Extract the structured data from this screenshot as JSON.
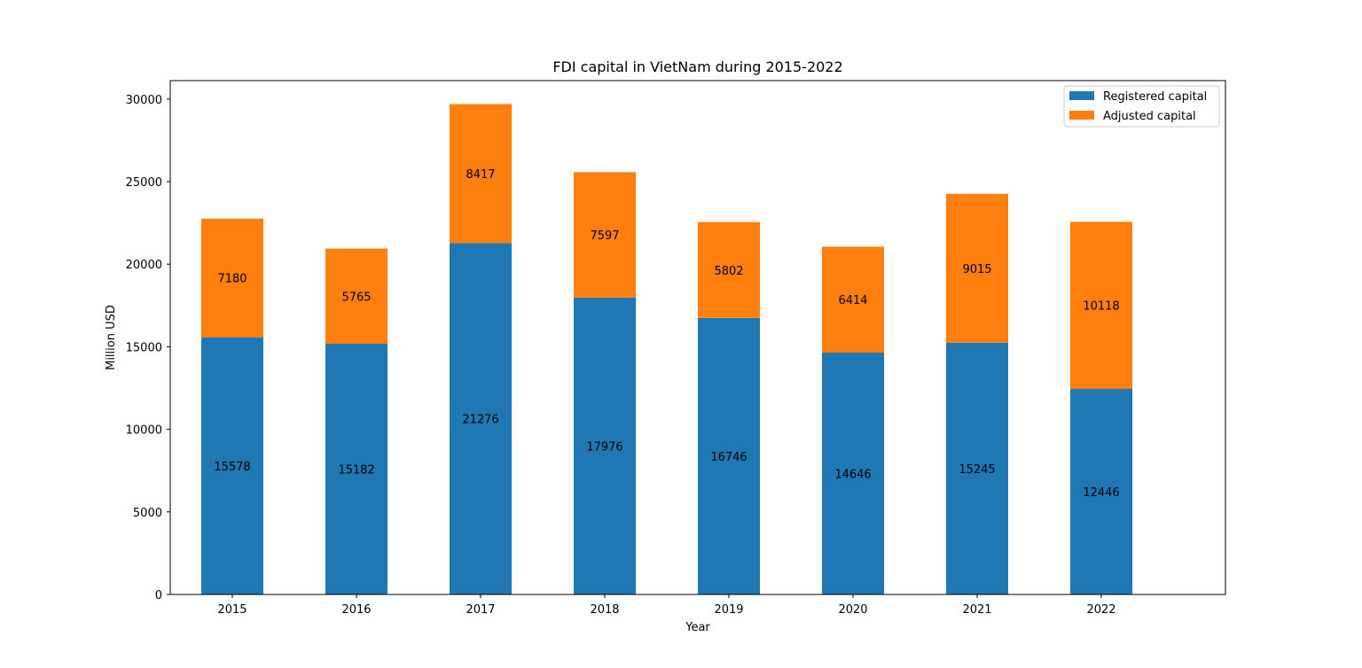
{
  "chart_data": {
    "type": "bar",
    "stacked": true,
    "title": "FDI capital in VietNam during 2015-2022",
    "xlabel": "Year",
    "ylabel": "Million USD",
    "categories": [
      "2015",
      "2016",
      "2017",
      "2018",
      "2019",
      "2020",
      "2021",
      "2022"
    ],
    "series": [
      {
        "name": "Registered capital",
        "color": "#1f77b4",
        "values": [
          15578,
          15182,
          21276,
          17976,
          16746,
          14646,
          15245,
          12446
        ]
      },
      {
        "name": "Adjusted capital",
        "color": "#ff7f0e",
        "values": [
          7180,
          5765,
          8417,
          7597,
          5802,
          6414,
          9015,
          10118
        ]
      }
    ],
    "ylim": [
      0,
      31116
    ],
    "yticks": [
      0,
      5000,
      10000,
      15000,
      20000,
      25000,
      30000
    ],
    "data_labels": true,
    "grid": false,
    "legend_position": "top-right"
  }
}
